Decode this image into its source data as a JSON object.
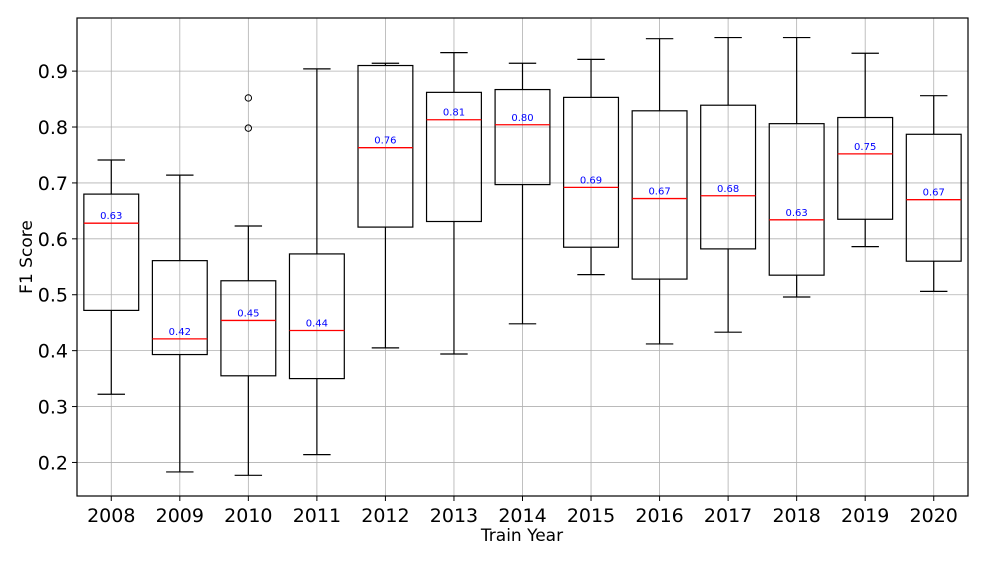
{
  "chart_data": {
    "type": "box",
    "xlabel": "Train Year",
    "ylabel": "F1 Score",
    "ylim": [
      0.14,
      0.995
    ],
    "yticks": [
      0.2,
      0.3,
      0.4,
      0.5,
      0.6,
      0.7,
      0.8,
      0.9
    ],
    "ytick_labels": [
      "0.2",
      "0.3",
      "0.4",
      "0.5",
      "0.6",
      "0.7",
      "0.8",
      "0.9"
    ],
    "grid": true,
    "colors": {
      "box": "#000000",
      "median": "#ff0000",
      "median_label": "#0000ff",
      "grid": "#b0b0b0"
    },
    "categories": [
      "2008",
      "2009",
      "2010",
      "2011",
      "2012",
      "2013",
      "2014",
      "2015",
      "2016",
      "2017",
      "2018",
      "2019",
      "2020"
    ],
    "boxes": [
      {
        "category": "2008",
        "whisker_low": 0.322,
        "q1": 0.472,
        "median": 0.628,
        "q3": 0.68,
        "whisker_high": 0.741,
        "fliers": [],
        "median_label": "0.63"
      },
      {
        "category": "2009",
        "whisker_low": 0.183,
        "q1": 0.393,
        "median": 0.421,
        "q3": 0.561,
        "whisker_high": 0.714,
        "fliers": [],
        "median_label": "0.42"
      },
      {
        "category": "2010",
        "whisker_low": 0.177,
        "q1": 0.355,
        "median": 0.454,
        "q3": 0.525,
        "whisker_high": 0.623,
        "fliers": [
          0.798,
          0.852
        ],
        "median_label": "0.45"
      },
      {
        "category": "2011",
        "whisker_low": 0.214,
        "q1": 0.35,
        "median": 0.436,
        "q3": 0.573,
        "whisker_high": 0.904,
        "fliers": [],
        "median_label": "0.44"
      },
      {
        "category": "2012",
        "whisker_low": 0.405,
        "q1": 0.621,
        "median": 0.763,
        "q3": 0.91,
        "whisker_high": 0.914,
        "fliers": [],
        "median_label": "0.76"
      },
      {
        "category": "2013",
        "whisker_low": 0.394,
        "q1": 0.631,
        "median": 0.813,
        "q3": 0.862,
        "whisker_high": 0.933,
        "fliers": [],
        "median_label": "0.81"
      },
      {
        "category": "2014",
        "whisker_low": 0.448,
        "q1": 0.697,
        "median": 0.804,
        "q3": 0.867,
        "whisker_high": 0.914,
        "fliers": [],
        "median_label": "0.80"
      },
      {
        "category": "2015",
        "whisker_low": 0.536,
        "q1": 0.585,
        "median": 0.692,
        "q3": 0.853,
        "whisker_high": 0.921,
        "fliers": [],
        "median_label": "0.69"
      },
      {
        "category": "2016",
        "whisker_low": 0.412,
        "q1": 0.528,
        "median": 0.672,
        "q3": 0.829,
        "whisker_high": 0.958,
        "fliers": [],
        "median_label": "0.67"
      },
      {
        "category": "2017",
        "whisker_low": 0.433,
        "q1": 0.582,
        "median": 0.677,
        "q3": 0.839,
        "whisker_high": 0.96,
        "fliers": [],
        "median_label": "0.68"
      },
      {
        "category": "2018",
        "whisker_low": 0.496,
        "q1": 0.535,
        "median": 0.634,
        "q3": 0.806,
        "whisker_high": 0.96,
        "fliers": [],
        "median_label": "0.63"
      },
      {
        "category": "2019",
        "whisker_low": 0.586,
        "q1": 0.635,
        "median": 0.752,
        "q3": 0.817,
        "whisker_high": 0.932,
        "fliers": [],
        "median_label": "0.75"
      },
      {
        "category": "2020",
        "whisker_low": 0.506,
        "q1": 0.56,
        "median": 0.67,
        "q3": 0.787,
        "whisker_high": 0.856,
        "fliers": [],
        "median_label": "0.67"
      }
    ]
  }
}
